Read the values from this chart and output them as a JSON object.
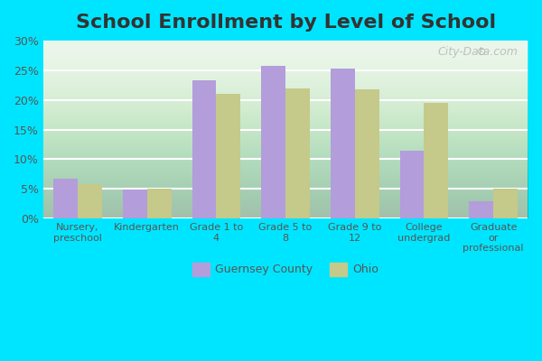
{
  "title": "School Enrollment by Level of School",
  "categories": [
    "Nursery,\npreschool",
    "Kindergarten",
    "Grade 1 to\n4",
    "Grade 5 to\n8",
    "Grade 9 to\n12",
    "College\nundergrad",
    "Graduate\nor\nprofessional"
  ],
  "guernsey_values": [
    6.7,
    4.9,
    23.3,
    25.7,
    25.3,
    11.5,
    2.9
  ],
  "ohio_values": [
    5.8,
    5.1,
    21.0,
    22.0,
    21.8,
    19.5,
    5.1
  ],
  "guernsey_color": "#b39ddb",
  "ohio_color": "#c5c98a",
  "background_color": "#e8f5e9",
  "outer_background": "#00e5ff",
  "title_fontsize": 16,
  "ylim": [
    0,
    30
  ],
  "yticks": [
    0,
    5,
    10,
    15,
    20,
    25,
    30
  ],
  "ytick_labels": [
    "0%",
    "5%",
    "10%",
    "15%",
    "20%",
    "25%",
    "30%"
  ],
  "legend_guernsey": "Guernsey County",
  "legend_ohio": "Ohio",
  "bar_width": 0.35,
  "grid_color": "#ffffff",
  "watermark": "City-Data.com"
}
